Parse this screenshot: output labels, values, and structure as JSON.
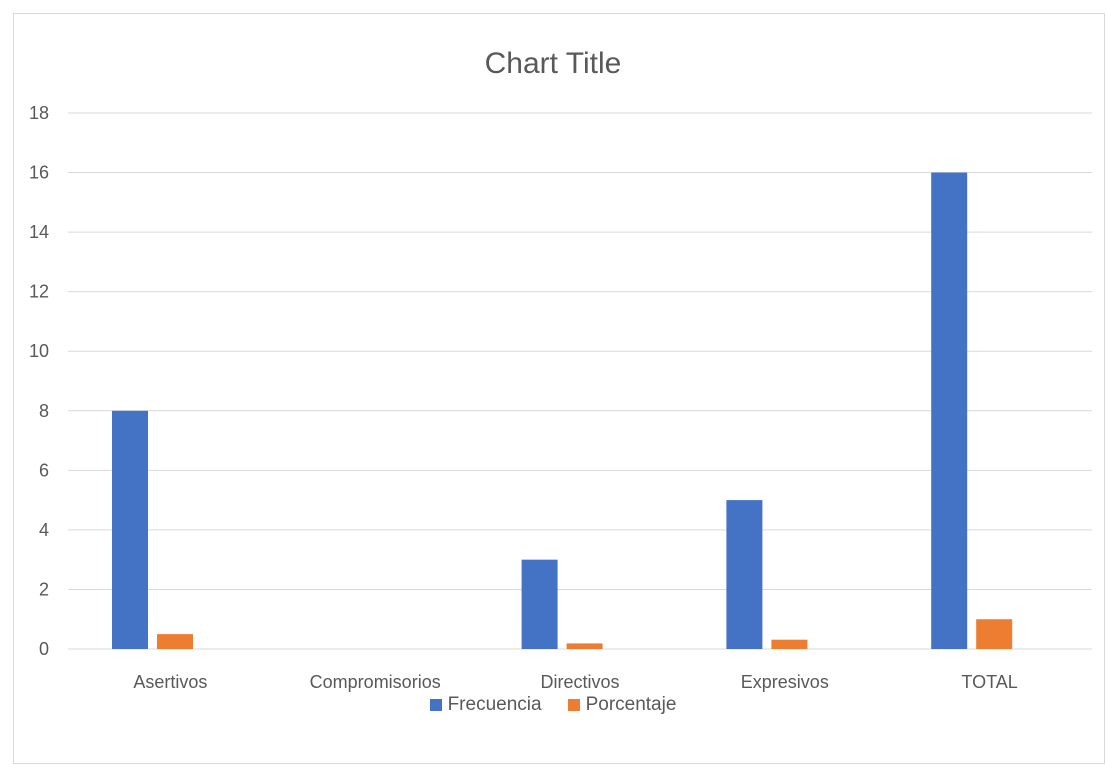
{
  "chart_data": {
    "type": "bar",
    "title": "Chart Title",
    "xlabel": "",
    "ylabel": "",
    "categories": [
      "Asertivos",
      "Compromisorios",
      "Directivos",
      "Expresivos",
      "TOTAL"
    ],
    "series": [
      {
        "name": "Frecuencia",
        "color": "#4472C4",
        "values": [
          8,
          0,
          3,
          5,
          16
        ]
      },
      {
        "name": "Porcentaje",
        "color": "#ED7D31",
        "values": [
          0.5,
          0,
          0.1875,
          0.3125,
          1
        ]
      }
    ],
    "ylim": [
      0,
      18
    ],
    "yticks": [
      "0",
      "2",
      "4",
      "6",
      "8",
      "10",
      "12",
      "14",
      "16",
      "18"
    ],
    "grid": true,
    "legend_position": "bottom"
  }
}
